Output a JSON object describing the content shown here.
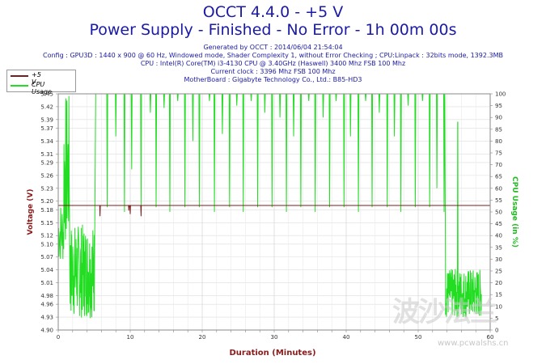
{
  "header": {
    "title": "OCCT 4.4.0 - +5 V",
    "subtitle": "Power Supply - Finished - No Error - 1h 00m 00s",
    "info_lines": [
      "Generated by OCCT : 2014/06/04 21:54:04",
      "Config : GPU3D : 1440 x 900 @ 60 Hz, Windowed mode, Shader Complexity 1, without Error Checking ; CPU:Linpack : 32bits mode, 1392.3MB",
      "CPU : Intel(R) Core(TM) i3-4130 CPU @ 3.40GHz (Haswell) 3400 Mhz FSB 100 Mhz",
      "Current clock : 3396 Mhz FSB 100 Mhz",
      "MotherBoard : Gigabyte Technology Co., Ltd.: B85-HD3"
    ]
  },
  "watermark": {
    "logo_text": "波沙法兰",
    "url": "www.pcwalshs.cn"
  },
  "colors": {
    "voltage": "#7a1c1c",
    "cpu": "#22dd22",
    "axis_text": "#8b1a1a",
    "right_axis_text": "#22bb22"
  },
  "chart_data": {
    "type": "line",
    "xlabel": "Duration (Minutes)",
    "ylabel": "Voltage (V)",
    "y2label": "CPU Usage (in %)",
    "xlim": [
      0,
      60
    ],
    "ylim": [
      4.9,
      5.45
    ],
    "y2lim": [
      0,
      100
    ],
    "x_ticks": [
      0,
      10,
      20,
      30,
      40,
      50,
      60
    ],
    "y_ticks": [
      4.9,
      4.93,
      4.96,
      4.98,
      5.01,
      5.04,
      5.07,
      5.1,
      5.12,
      5.15,
      5.18,
      5.2,
      5.23,
      5.26,
      5.29,
      5.31,
      5.34,
      5.37,
      5.39,
      5.42,
      5.45
    ],
    "y_tick_labels": [
      "4.90",
      "4.93",
      "4.96",
      "4.98",
      "5.01",
      "5.04",
      "5.07",
      "5.10",
      "5.12",
      "5.15",
      "5.18",
      "5.20",
      "5.23",
      "5.26",
      "5.29",
      "5.31",
      "5.34",
      "5.37",
      "5.39",
      "5.42",
      "5.45"
    ],
    "y2_ticks": [
      0,
      5,
      10,
      15,
      20,
      25,
      30,
      35,
      40,
      45,
      50,
      55,
      60,
      65,
      70,
      75,
      80,
      85,
      90,
      95,
      100
    ],
    "grid": true,
    "legend_placement": "top-left",
    "series": [
      {
        "name": "+5 V",
        "axis": "left",
        "baseline": 5.19,
        "dips": [
          {
            "x": 5.8,
            "y": 5.165
          },
          {
            "x": 9.8,
            "y": 5.178
          },
          {
            "x": 10.0,
            "y": 5.17
          },
          {
            "x": 11.5,
            "y": 5.165
          }
        ]
      },
      {
        "name": "CPU Usage",
        "axis": "right",
        "plateau": 100,
        "segments": [
          {
            "x0": 0.0,
            "x1": 0.8,
            "y_min": 28,
            "y_max": 55
          },
          {
            "x0": 0.8,
            "x1": 1.6,
            "y_min": 35,
            "y_max": 100
          },
          {
            "x0": 1.6,
            "x1": 5.0,
            "y_min": 5,
            "y_max": 45
          },
          {
            "x0": 53.8,
            "x1": 58.8,
            "y_min": 5,
            "y_max": 26
          }
        ],
        "spike_up": [
          {
            "x": 55.5,
            "y": 88
          },
          {
            "x": 55.8,
            "y": 20
          }
        ],
        "dips": [
          {
            "x": 6.8,
            "y": 52
          },
          {
            "x": 8.0,
            "y": 82
          },
          {
            "x": 9.2,
            "y": 50
          },
          {
            "x": 10.2,
            "y": 68
          },
          {
            "x": 11.5,
            "y": 52
          },
          {
            "x": 12.8,
            "y": 92
          },
          {
            "x": 13.6,
            "y": 52
          },
          {
            "x": 14.7,
            "y": 94
          },
          {
            "x": 15.5,
            "y": 50
          },
          {
            "x": 16.6,
            "y": 97
          },
          {
            "x": 17.6,
            "y": 52
          },
          {
            "x": 18.7,
            "y": 80
          },
          {
            "x": 19.6,
            "y": 52
          },
          {
            "x": 21.0,
            "y": 97
          },
          {
            "x": 21.7,
            "y": 50
          },
          {
            "x": 22.8,
            "y": 83
          },
          {
            "x": 23.8,
            "y": 52
          },
          {
            "x": 24.8,
            "y": 95
          },
          {
            "x": 25.7,
            "y": 50
          },
          {
            "x": 26.8,
            "y": 97
          },
          {
            "x": 27.7,
            "y": 52
          },
          {
            "x": 28.7,
            "y": 92
          },
          {
            "x": 29.7,
            "y": 52
          },
          {
            "x": 30.8,
            "y": 90
          },
          {
            "x": 31.7,
            "y": 50
          },
          {
            "x": 32.7,
            "y": 82
          },
          {
            "x": 33.7,
            "y": 52
          },
          {
            "x": 34.8,
            "y": 97
          },
          {
            "x": 35.7,
            "y": 50
          },
          {
            "x": 36.8,
            "y": 90
          },
          {
            "x": 37.7,
            "y": 52
          },
          {
            "x": 38.6,
            "y": 97
          },
          {
            "x": 39.7,
            "y": 52
          },
          {
            "x": 40.6,
            "y": 82
          },
          {
            "x": 41.7,
            "y": 50
          },
          {
            "x": 42.7,
            "y": 97
          },
          {
            "x": 43.6,
            "y": 52
          },
          {
            "x": 44.6,
            "y": 92
          },
          {
            "x": 45.7,
            "y": 52
          },
          {
            "x": 46.7,
            "y": 82
          },
          {
            "x": 47.6,
            "y": 50
          },
          {
            "x": 48.6,
            "y": 95
          },
          {
            "x": 49.6,
            "y": 52
          },
          {
            "x": 50.6,
            "y": 97
          },
          {
            "x": 51.6,
            "y": 52
          },
          {
            "x": 52.6,
            "y": 60
          },
          {
            "x": 53.6,
            "y": 50
          }
        ]
      }
    ]
  }
}
